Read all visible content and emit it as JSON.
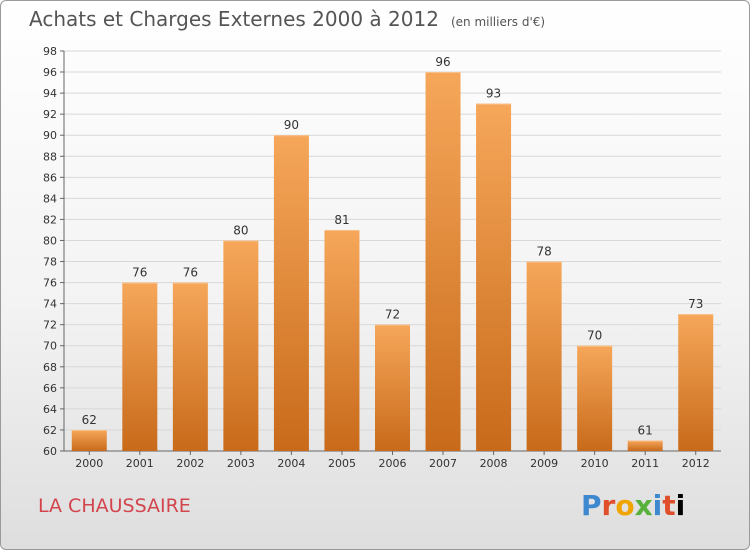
{
  "header": {
    "title": "Achats et Charges Externes 2000 à 2012",
    "subtitle": "(en milliers d'€)"
  },
  "footer": {
    "place": "LA CHAUSSAIRE",
    "logo": "Proxiti"
  },
  "colors": {
    "bar_top": "#f6a75a",
    "bar_bottom": "#c86a1a",
    "grid": "#d8d8d8"
  },
  "chart_data": {
    "type": "bar",
    "categories": [
      "2000",
      "2001",
      "2002",
      "2003",
      "2004",
      "2005",
      "2006",
      "2007",
      "2008",
      "2009",
      "2010",
      "2011",
      "2012"
    ],
    "values": [
      62,
      76,
      76,
      80,
      90,
      81,
      72,
      96,
      93,
      78,
      70,
      61,
      73
    ],
    "title": "Achats et Charges Externes 2000 à 2012",
    "subtitle": "(en milliers d'€)",
    "xlabel": "",
    "ylabel": "",
    "ylim": [
      60,
      98
    ],
    "ytick_step": 2,
    "grid": true,
    "data_labels": true
  }
}
